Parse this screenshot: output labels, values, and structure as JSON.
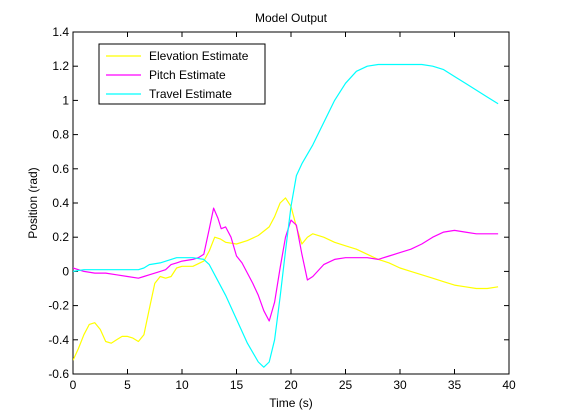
{
  "chart_data": {
    "type": "line",
    "title": "Model Output",
    "xlabel": "Time (s)",
    "ylabel": "Position (rad)",
    "xlim": [
      0,
      40
    ],
    "ylim": [
      -0.6,
      1.4
    ],
    "xticks": [
      0,
      5,
      10,
      15,
      20,
      25,
      30,
      35,
      40
    ],
    "xtick_labels": [
      "0",
      "5",
      "10",
      "15",
      "20",
      "25",
      "30",
      "35",
      "40"
    ],
    "yticks": [
      -0.6,
      -0.4,
      -0.2,
      0,
      0.2,
      0.4,
      0.6,
      0.8,
      1,
      1.2,
      1.4
    ],
    "ytick_labels": [
      "-0.6",
      "-0.4",
      "-0.2",
      "0",
      "0.2",
      "0.4",
      "0.6",
      "0.8",
      "1",
      "1.2",
      "1.4"
    ],
    "grid": false,
    "legend_position": "top-left",
    "series": [
      {
        "name": "Elevation Estimate",
        "color": "#ffff00",
        "points": [
          [
            0,
            -0.52
          ],
          [
            0.5,
            -0.45
          ],
          [
            1,
            -0.37
          ],
          [
            1.5,
            -0.31
          ],
          [
            2,
            -0.3
          ],
          [
            2.5,
            -0.34
          ],
          [
            3,
            -0.41
          ],
          [
            3.5,
            -0.42
          ],
          [
            4,
            -0.4
          ],
          [
            4.5,
            -0.38
          ],
          [
            5,
            -0.38
          ],
          [
            5.5,
            -0.39
          ],
          [
            6,
            -0.41
          ],
          [
            6.5,
            -0.37
          ],
          [
            7,
            -0.22
          ],
          [
            7.5,
            -0.07
          ],
          [
            8,
            -0.03
          ],
          [
            8.5,
            -0.04
          ],
          [
            9,
            -0.03
          ],
          [
            9.5,
            0.02
          ],
          [
            10,
            0.03
          ],
          [
            11,
            0.03
          ],
          [
            12,
            0.06
          ],
          [
            12.5,
            0.12
          ],
          [
            13,
            0.2
          ],
          [
            13.5,
            0.19
          ],
          [
            14,
            0.17
          ],
          [
            15,
            0.16
          ],
          [
            16,
            0.18
          ],
          [
            17,
            0.21
          ],
          [
            18,
            0.26
          ],
          [
            18.5,
            0.32
          ],
          [
            19,
            0.4
          ],
          [
            19.5,
            0.43
          ],
          [
            20,
            0.38
          ],
          [
            20.5,
            0.26
          ],
          [
            21,
            0.16
          ],
          [
            21.5,
            0.2
          ],
          [
            22,
            0.22
          ],
          [
            23,
            0.2
          ],
          [
            24,
            0.17
          ],
          [
            25,
            0.15
          ],
          [
            26,
            0.13
          ],
          [
            27,
            0.1
          ],
          [
            28,
            0.07
          ],
          [
            29,
            0.05
          ],
          [
            30,
            0.02
          ],
          [
            31,
            0.0
          ],
          [
            32,
            -0.02
          ],
          [
            33,
            -0.04
          ],
          [
            34,
            -0.06
          ],
          [
            35,
            -0.08
          ],
          [
            36,
            -0.09
          ],
          [
            37,
            -0.1
          ],
          [
            38,
            -0.1
          ],
          [
            39,
            -0.09
          ]
        ]
      },
      {
        "name": "Pitch Estimate",
        "color": "#ff00ff",
        "points": [
          [
            0,
            0.02
          ],
          [
            1,
            0.0
          ],
          [
            2,
            -0.01
          ],
          [
            3,
            -0.01
          ],
          [
            4,
            -0.02
          ],
          [
            5,
            -0.03
          ],
          [
            6,
            -0.04
          ],
          [
            6.5,
            -0.03
          ],
          [
            7,
            -0.02
          ],
          [
            8,
            0.0
          ],
          [
            8.5,
            0.01
          ],
          [
            9,
            0.04
          ],
          [
            9.5,
            0.05
          ],
          [
            10,
            0.06
          ],
          [
            11,
            0.07
          ],
          [
            11.5,
            0.08
          ],
          [
            12,
            0.1
          ],
          [
            12.5,
            0.25
          ],
          [
            12.9,
            0.37
          ],
          [
            13.3,
            0.31
          ],
          [
            13.6,
            0.25
          ],
          [
            14,
            0.26
          ],
          [
            14.5,
            0.2
          ],
          [
            15,
            0.09
          ],
          [
            15.5,
            0.05
          ],
          [
            16,
            -0.01
          ],
          [
            16.5,
            -0.07
          ],
          [
            17,
            -0.14
          ],
          [
            17.5,
            -0.23
          ],
          [
            18,
            -0.29
          ],
          [
            18.5,
            -0.18
          ],
          [
            19,
            0.02
          ],
          [
            19.5,
            0.2
          ],
          [
            20,
            0.3
          ],
          [
            20.5,
            0.27
          ],
          [
            21,
            0.1
          ],
          [
            21.5,
            -0.05
          ],
          [
            22,
            -0.03
          ],
          [
            23,
            0.04
          ],
          [
            24,
            0.07
          ],
          [
            25,
            0.08
          ],
          [
            26,
            0.08
          ],
          [
            27,
            0.08
          ],
          [
            28,
            0.07
          ],
          [
            29,
            0.09
          ],
          [
            30,
            0.11
          ],
          [
            31,
            0.13
          ],
          [
            32,
            0.16
          ],
          [
            33,
            0.2
          ],
          [
            34,
            0.23
          ],
          [
            35,
            0.24
          ],
          [
            36,
            0.23
          ],
          [
            37,
            0.22
          ],
          [
            38,
            0.22
          ],
          [
            39,
            0.22
          ]
        ]
      },
      {
        "name": "Travel Estimate",
        "color": "#00ffff",
        "points": [
          [
            0,
            0.0
          ],
          [
            1,
            0.01
          ],
          [
            2,
            0.01
          ],
          [
            3,
            0.01
          ],
          [
            4,
            0.01
          ],
          [
            5,
            0.01
          ],
          [
            6,
            0.01
          ],
          [
            6.5,
            0.02
          ],
          [
            7,
            0.04
          ],
          [
            8,
            0.05
          ],
          [
            9,
            0.07
          ],
          [
            9.5,
            0.08
          ],
          [
            10,
            0.08
          ],
          [
            11,
            0.08
          ],
          [
            12,
            0.07
          ],
          [
            12.5,
            0.04
          ],
          [
            13,
            -0.02
          ],
          [
            14,
            -0.14
          ],
          [
            15,
            -0.28
          ],
          [
            16,
            -0.42
          ],
          [
            17,
            -0.53
          ],
          [
            17.5,
            -0.56
          ],
          [
            18,
            -0.53
          ],
          [
            18.5,
            -0.4
          ],
          [
            19,
            -0.15
          ],
          [
            19.5,
            0.12
          ],
          [
            20,
            0.38
          ],
          [
            20.5,
            0.56
          ],
          [
            21,
            0.63
          ],
          [
            22,
            0.74
          ],
          [
            23,
            0.87
          ],
          [
            24,
            1.0
          ],
          [
            25,
            1.1
          ],
          [
            26,
            1.17
          ],
          [
            27,
            1.2
          ],
          [
            28,
            1.21
          ],
          [
            30,
            1.21
          ],
          [
            32,
            1.21
          ],
          [
            33,
            1.2
          ],
          [
            34,
            1.18
          ],
          [
            35,
            1.14
          ],
          [
            36,
            1.1
          ],
          [
            37,
            1.06
          ],
          [
            38,
            1.02
          ],
          [
            39,
            0.98
          ]
        ]
      }
    ]
  }
}
